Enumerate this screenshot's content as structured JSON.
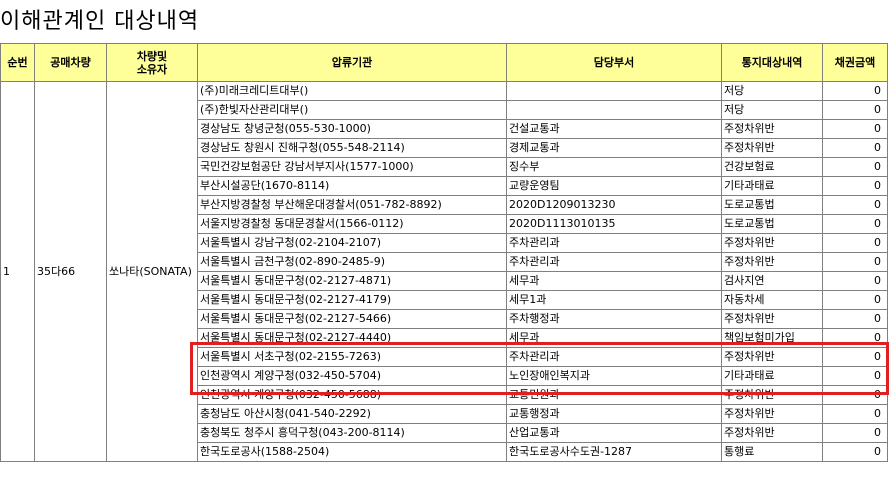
{
  "title": "이해관계인 대상내역",
  "headers": [
    "순번",
    "공매차량",
    "차량및\n소유자",
    "압류기관",
    "담당부서",
    "통지대상내역",
    "채권금액"
  ],
  "row_meta": {
    "seq": "1",
    "vehicle": "35다66",
    "model": "쏘나타(SONATA)"
  },
  "rows": [
    {
      "agency": "(주)미래크레디트대부()",
      "dept": "",
      "type": "저당",
      "amount": "0"
    },
    {
      "agency": "(주)한빛자산관리대부()",
      "dept": "",
      "type": "저당",
      "amount": "0"
    },
    {
      "agency": "경상남도 창녕군청(055-530-1000)",
      "dept": "건설교통과",
      "type": "주정차위반",
      "amount": "0"
    },
    {
      "agency": "경상남도 창원시 진해구청(055-548-2114)",
      "dept": "경제교통과",
      "type": "주정차위반",
      "amount": "0"
    },
    {
      "agency": "국민건강보험공단 강남서부지사(1577-1000)",
      "dept": "징수부",
      "type": "건강보험료",
      "amount": "0"
    },
    {
      "agency": "부산시설공단(1670-8114)",
      "dept": "교량운영팀",
      "type": "기타과태료",
      "amount": "0"
    },
    {
      "agency": "부산지방경찰청 부산해운대경찰서(051-782-8892)",
      "dept": "2020D1209013230",
      "type": "도로교통법",
      "amount": "0"
    },
    {
      "agency": "서울지방경찰청 동대문경찰서(1566-0112)",
      "dept": "2020D1113010135",
      "type": "도로교통법",
      "amount": "0"
    },
    {
      "agency": "서울특별시 강남구청(02-2104-2107)",
      "dept": "주차관리과",
      "type": "주정차위반",
      "amount": "0"
    },
    {
      "agency": "서울특별시 금천구청(02-890-2485-9)",
      "dept": "주차관리과",
      "type": "주정차위반",
      "amount": "0"
    },
    {
      "agency": "서울특별시 동대문구청(02-2127-4871)",
      "dept": "세무과",
      "type": "검사지연",
      "amount": "0"
    },
    {
      "agency": "서울특별시 동대문구청(02-2127-4179)",
      "dept": "세무1과",
      "type": "자동차세",
      "amount": "0"
    },
    {
      "agency": "서울특별시 동대문구청(02-2127-5466)",
      "dept": "주차행정과",
      "type": "주정차위반",
      "amount": "0"
    },
    {
      "agency": "서울특별시 동대문구청(02-2127-4440)",
      "dept": "세무과",
      "type": "책임보험미가입",
      "amount": "0"
    },
    {
      "agency": "서울특별시 서초구청(02-2155-7263)",
      "dept": "주차관리과",
      "type": "주정차위반",
      "amount": "0"
    },
    {
      "agency": "인천광역시 계양구청(032-450-5704)",
      "dept": "노인장애인복지과",
      "type": "기타과태료",
      "amount": "0"
    },
    {
      "agency": "인천광역시 계양구청(032-450-5688)",
      "dept": "교통민원과",
      "type": "주정차위반",
      "amount": "0"
    },
    {
      "agency": "충청남도 아산시청(041-540-2292)",
      "dept": "교통행정과",
      "type": "주정차위반",
      "amount": "0"
    },
    {
      "agency": "충청북도 청주시 흥덕구청(043-200-8114)",
      "dept": "산업교통과",
      "type": "주정차위반",
      "amount": "0"
    },
    {
      "agency": "한국도로공사(1588-2504)",
      "dept": "한국도로공사수도권-1287",
      "type": "통행료",
      "amount": "0"
    }
  ]
}
